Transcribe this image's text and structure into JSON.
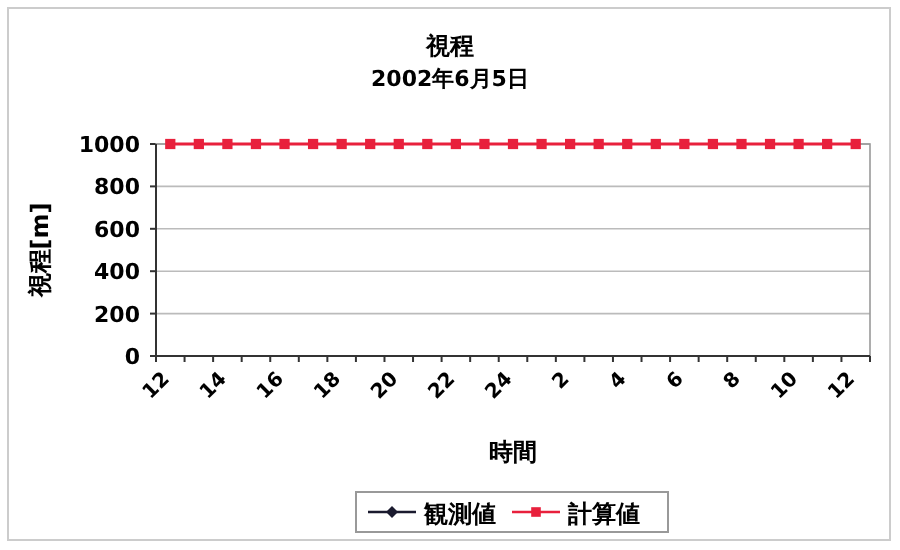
{
  "chart_data": {
    "type": "line",
    "title": "視程",
    "subtitle": "2002年6月5日",
    "xlabel": "時間",
    "ylabel": "視程[m]",
    "categories": [
      "12",
      null,
      "14",
      null,
      "16",
      null,
      "18",
      null,
      "20",
      null,
      "22",
      null,
      "24",
      null,
      "2",
      null,
      "4",
      null,
      "6",
      null,
      "8",
      null,
      "10",
      null,
      "12"
    ],
    "series": [
      {
        "name": "観測値",
        "color": "#1a1a2e",
        "marker": "diamond",
        "values": [
          null,
          null,
          null,
          null,
          null,
          null,
          null,
          null,
          null,
          null,
          null,
          null,
          null,
          null,
          null,
          null,
          null,
          null,
          null,
          null,
          null,
          null,
          null,
          null,
          null
        ]
      },
      {
        "name": "計算値",
        "color": "#e8203c",
        "marker": "square",
        "values": [
          1000,
          1000,
          1000,
          1000,
          1000,
          1000,
          1000,
          1000,
          1000,
          1000,
          1000,
          1000,
          1000,
          1000,
          1000,
          1000,
          1000,
          1000,
          1000,
          1000,
          1000,
          1000,
          1000,
          1000,
          1000
        ]
      }
    ],
    "ylim": [
      0,
      1000
    ],
    "yticks": [
      0,
      200,
      400,
      600,
      800,
      1000
    ],
    "grid": "y",
    "legend": "bottom"
  }
}
